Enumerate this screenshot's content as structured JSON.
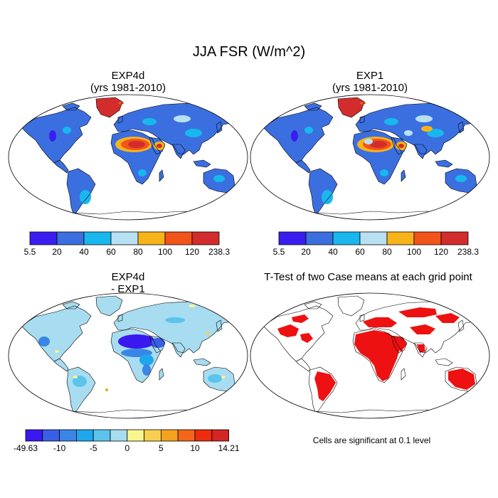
{
  "figure": {
    "title": "JJA FSR (W/m^2)"
  },
  "panels": [
    {
      "id": "exp4d",
      "title_line1": "EXP4d",
      "title_line2": "(yrs 1981-2010)"
    },
    {
      "id": "exp1",
      "title_line1": "EXP1",
      "title_line2": "(yrs 1981-2010)"
    },
    {
      "id": "diff",
      "title_line1": "EXP4d",
      "title_line2": "- EXP1"
    },
    {
      "id": "ttest",
      "title_line1": "T-Test of two Case means at each grid point"
    }
  ],
  "colorbars": {
    "abs": {
      "labels": [
        "5.5",
        "20",
        "40",
        "60",
        "80",
        "100",
        "120",
        "238.3"
      ],
      "colors": [
        "#3a1ef0",
        "#3b6fe0",
        "#18b8ee",
        "#b8e0f2",
        "#f6b41a",
        "#f2541a",
        "#d22c2c"
      ]
    },
    "diff": {
      "labels": [
        "-49.63",
        "-10",
        "-5",
        "0",
        "5",
        "10",
        "14.21"
      ],
      "colors": [
        "#3a18f0",
        "#3a5ee8",
        "#3a86e6",
        "#1ea6ee",
        "#5ac4ec",
        "#a8dcf0",
        "#fbf58e",
        "#f8d050",
        "#f4a21e",
        "#f46618",
        "#ee2c10",
        "#d42424"
      ]
    }
  },
  "colors": {
    "land_abs": "#3b6fe0",
    "land_diff": "#a8dcf0",
    "significant": "#ee1111",
    "outline": "#000000"
  },
  "significance_note": "Cells are significant at 0.1 level"
}
